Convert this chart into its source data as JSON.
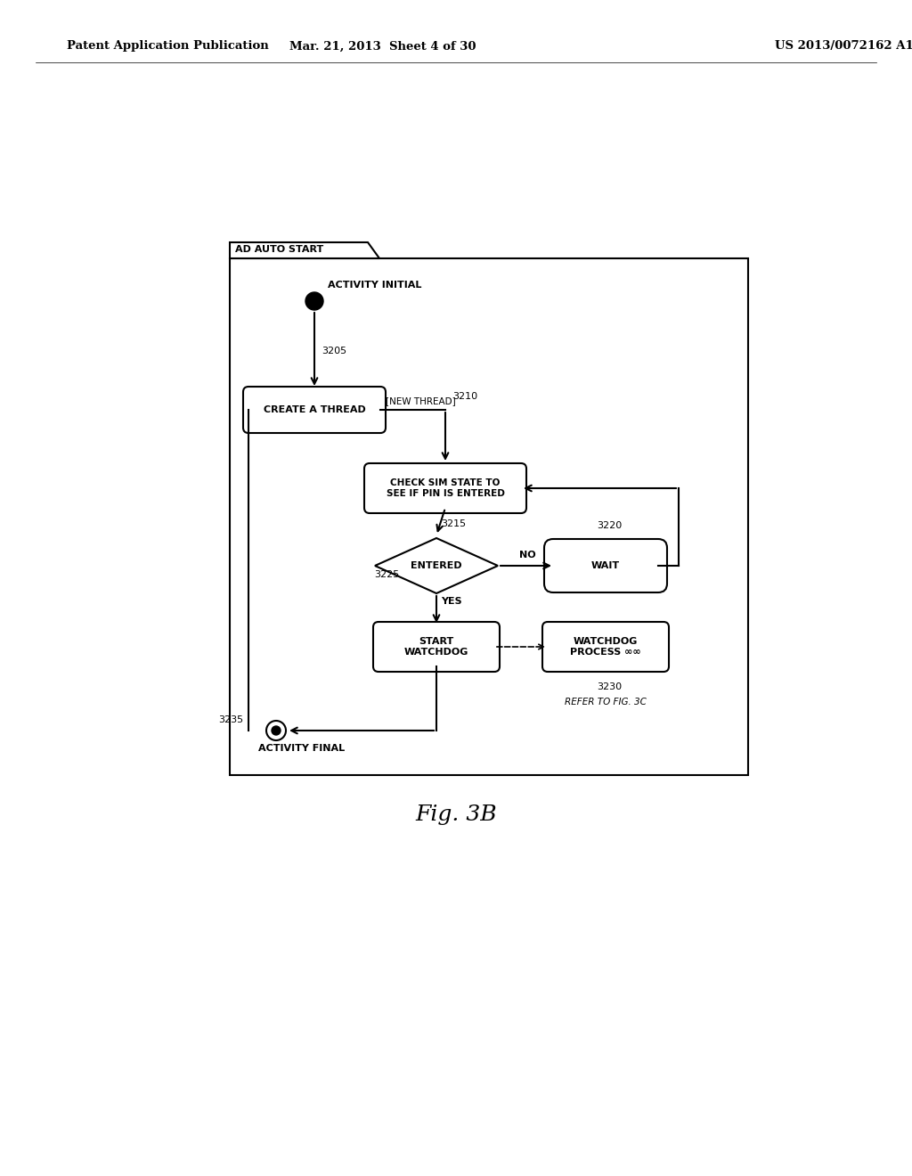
{
  "bg_color": "#ffffff",
  "header_text": "Patent Application Publication",
  "header_date": "Mar. 21, 2013  Sheet 4 of 30",
  "header_patent": "US 2013/0072162 A1",
  "fig_label": "Fig. 3B",
  "diagram_title": "AD AUTO START",
  "infinity": "∞∞"
}
